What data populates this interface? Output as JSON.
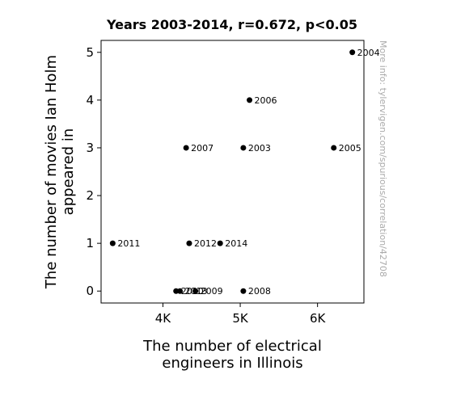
{
  "chart_data": {
    "type": "scatter",
    "title": "Years 2003-2014, r=0.672, p<0.05",
    "xlabel": "The number of electrical\nengineers in Illinois",
    "ylabel": "The number of movies Ian Holm\nappeared in",
    "xlim": [
      3200,
      6600
    ],
    "ylim": [
      -0.25,
      5.25
    ],
    "xticks": [
      {
        "value": 4000,
        "label": "4K"
      },
      {
        "value": 5000,
        "label": "5K"
      },
      {
        "value": 6000,
        "label": "6K"
      }
    ],
    "yticks": [
      {
        "value": 0,
        "label": "0"
      },
      {
        "value": 1,
        "label": "1"
      },
      {
        "value": 2,
        "label": "2"
      },
      {
        "value": 3,
        "label": "3"
      },
      {
        "value": 4,
        "label": "4"
      },
      {
        "value": 5,
        "label": "5"
      }
    ],
    "grid": false,
    "points": [
      {
        "label": "2003",
        "x": 5040,
        "y": 3
      },
      {
        "label": "2004",
        "x": 6450,
        "y": 5
      },
      {
        "label": "2005",
        "x": 6210,
        "y": 3
      },
      {
        "label": "2006",
        "x": 5120,
        "y": 4
      },
      {
        "label": "2007",
        "x": 4300,
        "y": 3
      },
      {
        "label": "2008",
        "x": 5040,
        "y": 0
      },
      {
        "label": "2009",
        "x": 4420,
        "y": 0
      },
      {
        "label": "2010",
        "x": 4170,
        "y": 0
      },
      {
        "label": "2011",
        "x": 3350,
        "y": 1
      },
      {
        "label": "2012",
        "x": 4340,
        "y": 1
      },
      {
        "label": "2013",
        "x": 4220,
        "y": 0
      },
      {
        "label": "2014",
        "x": 4740,
        "y": 1
      }
    ],
    "point_color": "#000000"
  },
  "watermark": "More info: tylervigen.com/spurious/correlation/42708"
}
